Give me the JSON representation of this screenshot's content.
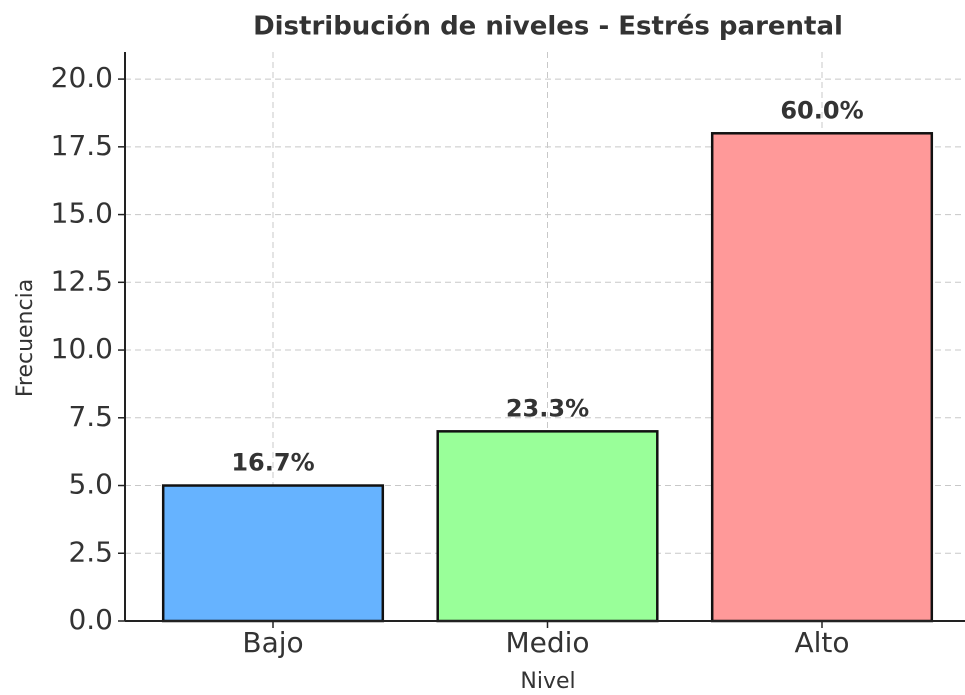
{
  "chart_data": {
    "type": "bar",
    "title": "Distribución de niveles - Estrés parental",
    "x_label": "Nivel",
    "y_label": "Frecuencia",
    "categories": [
      "Bajo",
      "Medio",
      "Alto"
    ],
    "values": [
      5,
      7,
      18
    ],
    "percentages": [
      16.7,
      23.3,
      60.0
    ],
    "value_labels": [
      "16.7%",
      "23.3%",
      "60.0%"
    ],
    "colors": [
      "#66b3ff",
      "#99ff99",
      "#ff9999"
    ],
    "ylim": [
      0,
      21
    ],
    "yticks": [
      {
        "value": 0,
        "label": "0.0"
      },
      2.5,
      {
        "value": 5,
        "label": "5.0"
      },
      7.5,
      {
        "value": 10,
        "label": "10.0"
      },
      12.5,
      {
        "value": 15,
        "label": "15.0"
      },
      17.5,
      {
        "value": 20,
        "label": "20.0"
      }
    ],
    "grid": true
  }
}
